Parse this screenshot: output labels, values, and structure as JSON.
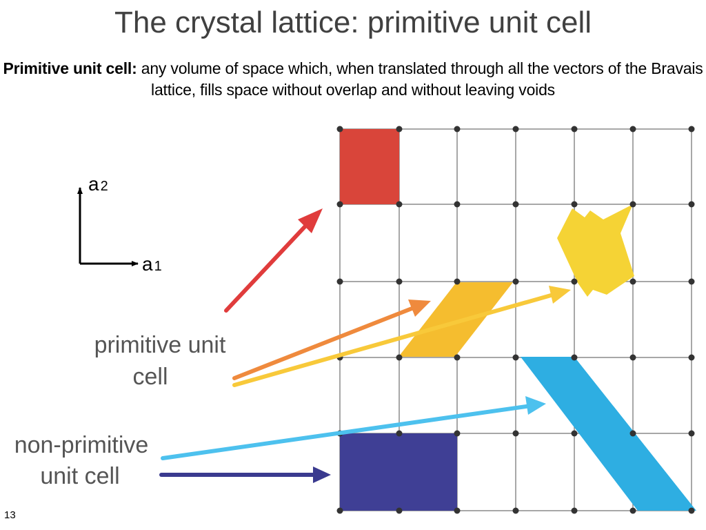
{
  "title": "The crystal lattice: primitive unit cell",
  "subtitle": {
    "bold": "Primitive unit cell:",
    "text": " any volume of space which, when translated through all the vectors of the Bravais lattice, fills space without overlap and without leaving voids"
  },
  "vectors": {
    "a1_letter": "a",
    "a1_sub": "1",
    "a2_letter": "a",
    "a2_sub": "2"
  },
  "labels": {
    "primitive_line1": "primitive unit",
    "primitive_line2": "cell",
    "nonprimitive_line1": "non-primitive",
    "nonprimitive_line2": "unit cell"
  },
  "slide_number": "13",
  "colors": {
    "red_cell": "#d9453a",
    "red_arrow": "#e03c3c",
    "yellow_blob": "#f5d335",
    "orange_cell": "#f5bd2f",
    "orange_arrow": "#ef8a3d",
    "yellow_arrow": "#f8c93a",
    "blue_cell": "#2eaee2",
    "blue_arrow": "#4dc1ee",
    "navy_cell": "#3f3f95",
    "navy_arrow": "#3a3a8f",
    "grid": "#8a8a8a",
    "node": "#333333"
  }
}
